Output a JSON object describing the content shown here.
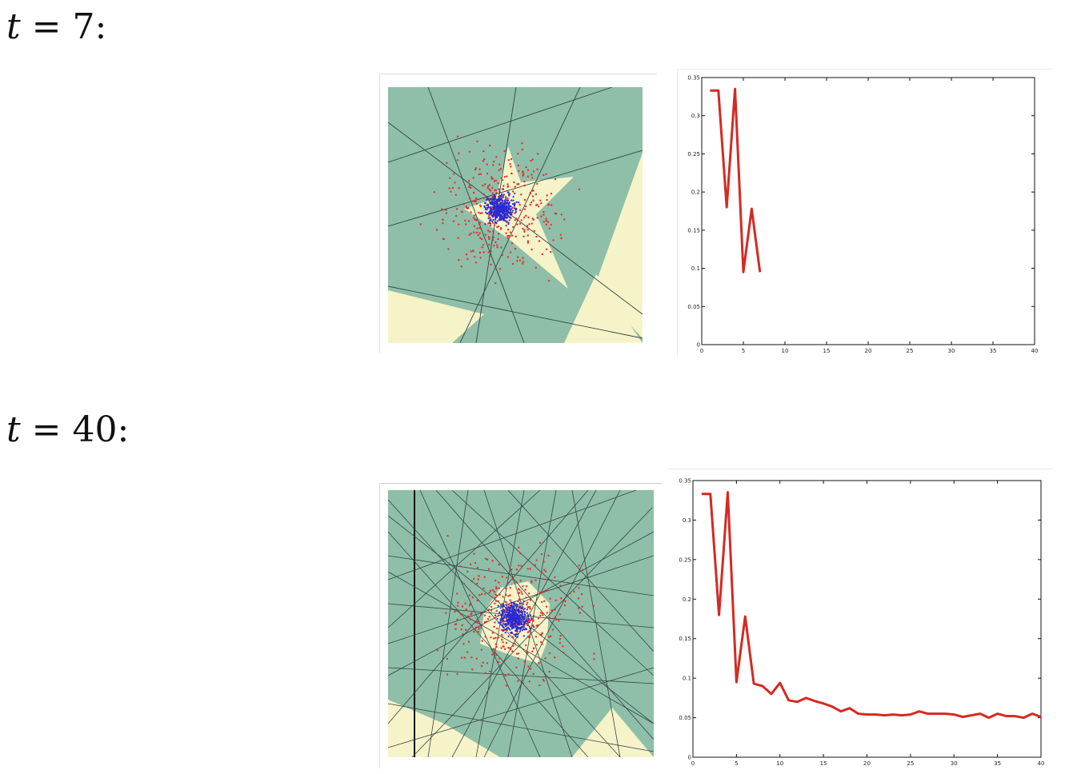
{
  "labels": {
    "t7": {
      "var": "t",
      "rest": " = 7:"
    },
    "t40": {
      "var": "t",
      "rest": " = 40:"
    }
  },
  "colors": {
    "green_region": "#8fbfa8",
    "yellow_region": "#f7f3c9",
    "red_points": "#e03030",
    "blue_points": "#2a2ad0",
    "line": "#d42a22",
    "weak_classifier": "#334444"
  },
  "chart_data": [
    {
      "type": "line",
      "title": "",
      "xlabel": "",
      "ylabel": "",
      "xlim": [
        0,
        40
      ],
      "ylim": [
        0,
        0.35
      ],
      "xticks": [
        "0",
        "5",
        "10",
        "15",
        "20",
        "25",
        "30",
        "35",
        "40"
      ],
      "yticks": [
        "0",
        "0.05",
        "0.1",
        "0.15",
        "0.2",
        "0.25",
        "0.3",
        "0.35"
      ],
      "grid": false,
      "series": [
        {
          "x": [
            1,
            2,
            3,
            4,
            5,
            6,
            7
          ],
          "y": [
            0.333,
            0.333,
            0.18,
            0.335,
            0.095,
            0.178,
            0.095
          ]
        }
      ]
    },
    {
      "type": "line",
      "title": "",
      "xlabel": "",
      "ylabel": "",
      "xlim": [
        0,
        40
      ],
      "ylim": [
        0,
        0.35
      ],
      "xticks": [
        "0",
        "5",
        "10",
        "15",
        "20",
        "25",
        "30",
        "35",
        "40"
      ],
      "yticks": [
        "0",
        "0.05",
        "0.1",
        "0.15",
        "0.2",
        "0.25",
        "0.3",
        "0.35"
      ],
      "grid": false,
      "series": [
        {
          "x": [
            1,
            2,
            3,
            4,
            5,
            6,
            7,
            8,
            9,
            10,
            11,
            12,
            13,
            14,
            15,
            16,
            17,
            18,
            19,
            20,
            21,
            22,
            23,
            24,
            25,
            26,
            27,
            28,
            29,
            30,
            31,
            32,
            33,
            34,
            35,
            36,
            37,
            38,
            39,
            40
          ],
          "y": [
            0.333,
            0.333,
            0.18,
            0.335,
            0.095,
            0.178,
            0.093,
            0.09,
            0.08,
            0.094,
            0.072,
            0.07,
            0.075,
            0.071,
            0.068,
            0.064,
            0.058,
            0.062,
            0.055,
            0.054,
            0.054,
            0.053,
            0.054,
            0.053,
            0.054,
            0.058,
            0.055,
            0.055,
            0.055,
            0.054,
            0.051,
            0.053,
            0.055,
            0.05,
            0.055,
            0.052,
            0.052,
            0.05,
            0.055,
            0.051
          ]
        }
      ]
    }
  ]
}
